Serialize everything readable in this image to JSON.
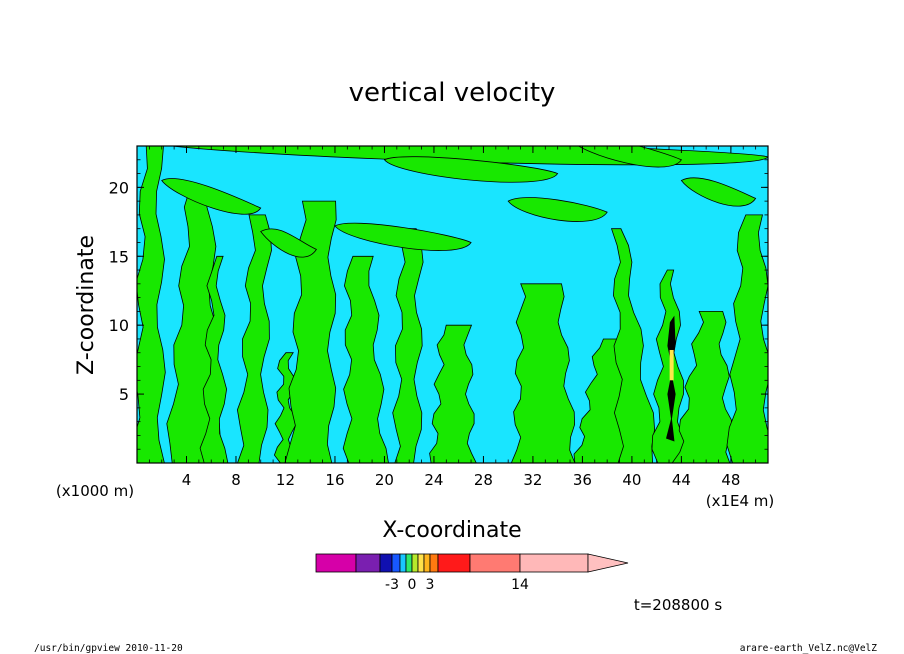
{
  "chart_data": {
    "type": "heatmap",
    "title": "vertical velocity",
    "xlabel": "X-coordinate",
    "ylabel": "Z-coordinate",
    "x_unit_label": "(x1000 m)",
    "x_scale_label": "(x1E4 m)",
    "xlim": [
      0,
      51
    ],
    "ylim": [
      0,
      23
    ],
    "x_ticks": [
      "4",
      "8",
      "12",
      "16",
      "20",
      "24",
      "28",
      "32",
      "36",
      "40",
      "44",
      "48"
    ],
    "y_ticks": [
      "5",
      "10",
      "15",
      "20"
    ],
    "colorbar": {
      "levels": [
        -14,
        -10,
        -6,
        -3,
        -2,
        -1,
        0,
        1,
        2,
        3,
        6,
        10,
        14,
        20
      ],
      "tick_labels": [
        "-3",
        "0",
        "3",
        "14"
      ],
      "colors": [
        "#d600a8",
        "#7a1fb0",
        "#1010b0",
        "#1858ff",
        "#19c6ff",
        "#2fe86a",
        "#b7e92b",
        "#ffe14a",
        "#ffb51c",
        "#ff7a10",
        "#ff1a1a",
        "#ff7a72",
        "#ffb8b8"
      ]
    },
    "field_colors": {
      "negative": "#19e5ff",
      "weak_positive": "#18e800",
      "moderate_positive": "#ffe84a",
      "strong_positive": "#000000"
    },
    "grid": false
  },
  "annotations": {
    "time": "t=208800 s",
    "footer_left": "/usr/bin/gpview  2010-11-20",
    "footer_right": "arare-earth_VelZ.nc@VelZ"
  }
}
